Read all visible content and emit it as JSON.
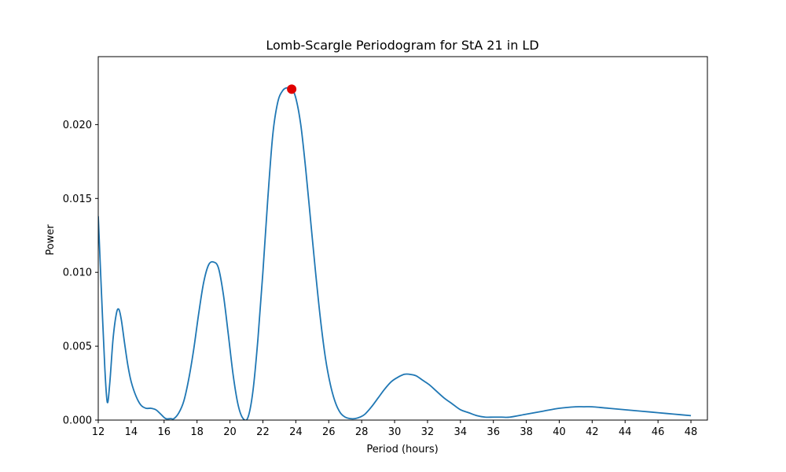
{
  "chart_data": {
    "type": "line",
    "title": "Lomb-Scargle Periodogram for StA 21 in LD",
    "xlabel": "Period (hours)",
    "ylabel": "Power",
    "xlim": [
      12,
      49
    ],
    "ylim": [
      0,
      0.0246
    ],
    "x_ticks": [
      12,
      14,
      16,
      18,
      20,
      22,
      24,
      26,
      28,
      30,
      32,
      34,
      36,
      38,
      40,
      42,
      44,
      46,
      48
    ],
    "y_ticks": [
      0.0,
      0.005,
      0.01,
      0.015,
      0.02
    ],
    "y_tick_labels": [
      "0.000",
      "0.005",
      "0.010",
      "0.015",
      "0.020"
    ],
    "grid": false,
    "line_color": "#1f77b4",
    "series": [
      {
        "x": [
          12.0,
          12.2,
          12.4,
          12.55,
          12.7,
          12.9,
          13.1,
          13.25,
          13.4,
          13.6,
          13.8,
          14.0,
          14.3,
          14.6,
          14.9,
          15.2,
          15.5,
          15.8,
          16.1,
          16.4,
          16.6,
          16.9,
          17.2,
          17.5,
          17.8,
          18.1,
          18.4,
          18.7,
          19.0,
          19.3,
          19.6,
          19.9,
          20.2,
          20.5,
          20.8,
          21.1,
          21.4,
          21.7,
          22.0,
          22.3,
          22.6,
          22.9,
          23.2,
          23.5,
          23.75,
          24.0,
          24.3,
          24.6,
          24.9,
          25.2,
          25.5,
          25.8,
          26.1,
          26.4,
          26.7,
          27.0,
          27.3,
          27.6,
          27.9,
          28.2,
          28.6,
          29.0,
          29.4,
          29.8,
          30.2,
          30.6,
          30.9,
          31.3,
          31.7,
          32.1,
          32.5,
          33.0,
          33.5,
          34.0,
          34.5,
          35.0,
          35.5,
          36.0,
          36.5,
          37.0,
          38.0,
          39.0,
          40.0,
          41.0,
          41.5,
          42.0,
          43.0,
          44.0,
          45.0,
          46.0,
          47.0,
          48.0
        ],
        "y": [
          0.0138,
          0.0085,
          0.0035,
          0.0012,
          0.0025,
          0.0055,
          0.0072,
          0.0075,
          0.0068,
          0.0052,
          0.0037,
          0.0026,
          0.0016,
          0.001,
          0.0008,
          0.0008,
          0.0007,
          0.0004,
          0.0001,
          0.0001,
          0.0001,
          0.0005,
          0.0013,
          0.0028,
          0.0048,
          0.0072,
          0.0093,
          0.0105,
          0.0107,
          0.0103,
          0.0085,
          0.0058,
          0.003,
          0.001,
          0.0001,
          0.0002,
          0.002,
          0.0055,
          0.01,
          0.015,
          0.0193,
          0.0215,
          0.0223,
          0.0225,
          0.0224,
          0.0218,
          0.02,
          0.017,
          0.0135,
          0.01,
          0.0068,
          0.0042,
          0.0024,
          0.0012,
          0.0005,
          0.0002,
          0.0001,
          0.0001,
          0.0002,
          0.0004,
          0.0009,
          0.0015,
          0.0021,
          0.0026,
          0.0029,
          0.0031,
          0.0031,
          0.003,
          0.0027,
          0.0024,
          0.002,
          0.0015,
          0.0011,
          0.0007,
          0.0005,
          0.0003,
          0.0002,
          0.0002,
          0.0002,
          0.0002,
          0.0004,
          0.0006,
          0.0008,
          0.0009,
          0.0009,
          0.0009,
          0.0008,
          0.0007,
          0.0006,
          0.0005,
          0.0004,
          0.0003
        ]
      }
    ],
    "peak": {
      "x": 23.75,
      "y": 0.0224,
      "color": "#e00000"
    }
  }
}
